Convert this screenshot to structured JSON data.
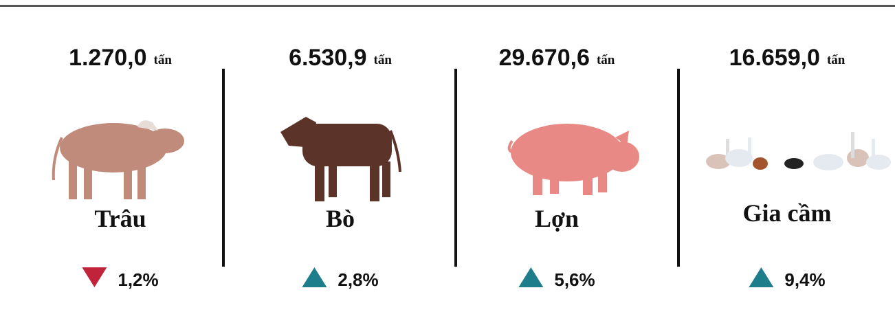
{
  "items": [
    {
      "amount": "1.270,0",
      "unit": "tấn",
      "name": "Trâu",
      "change": "1,2%",
      "trend": "down",
      "color": "#c0233a"
    },
    {
      "amount": "6.530,9",
      "unit": "tấn",
      "name": "Bò",
      "change": "2,8%",
      "trend": "up",
      "color": "#1e7d8a"
    },
    {
      "amount": "29.670,6",
      "unit": "tấn",
      "name": "Lợn",
      "change": "5,6%",
      "trend": "up",
      "color": "#1e7d8a"
    },
    {
      "amount": "16.659,0",
      "unit": "tấn",
      "name": "Gia cầm",
      "change": "9,4%",
      "trend": "up",
      "color": "#1e7d8a"
    }
  ]
}
